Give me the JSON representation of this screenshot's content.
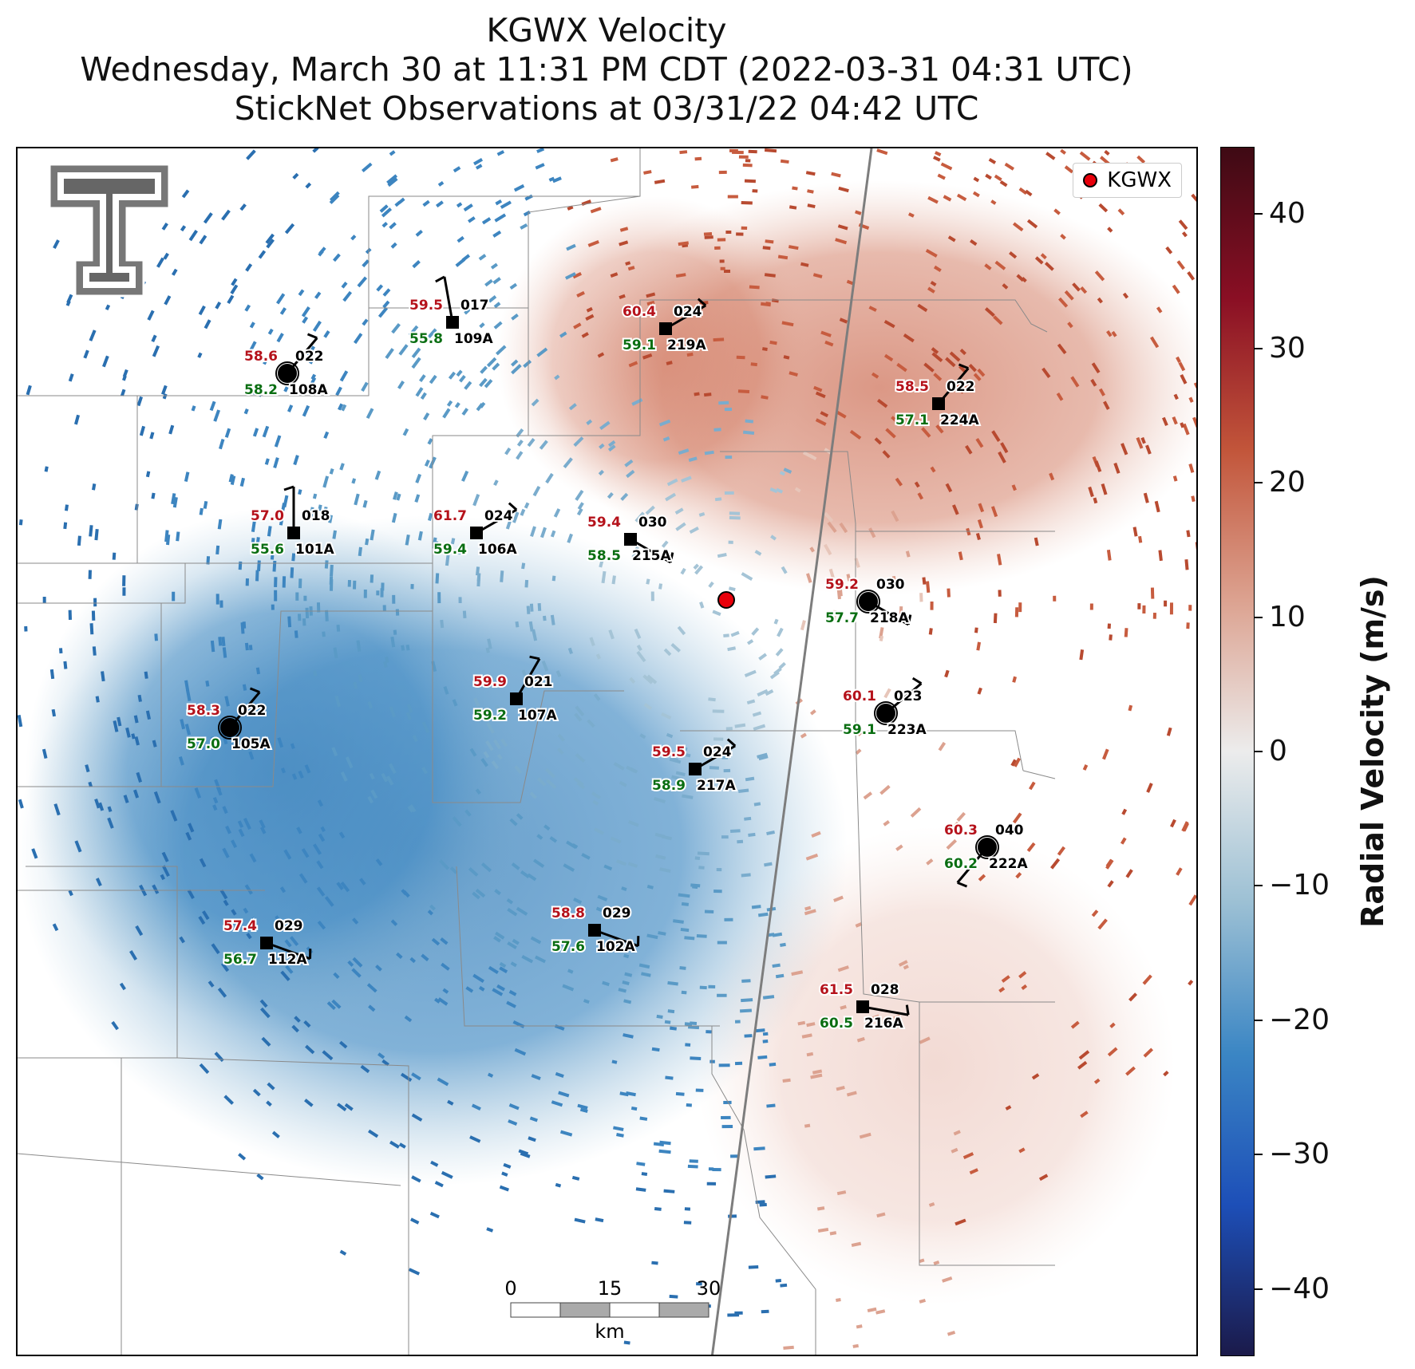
{
  "title": {
    "line1": "KGWX Velocity",
    "line2": "Wednesday, March 30 at 11:31 PM CDT (2022-03-31 04:31 UTC)",
    "line3": "StickNet Observations at 03/31/22 04:42 UTC"
  },
  "legend": {
    "label": "KGWX",
    "marker_color": "#e8000b"
  },
  "colorbar": {
    "title": "Radial Velocity (m/s)",
    "ticks": [
      "40",
      "30",
      "20",
      "10",
      "0",
      "−10",
      "−20",
      "−30",
      "−40"
    ],
    "range": [
      -45,
      45
    ],
    "colors": [
      "#1b1a4a",
      "#1d4fb8",
      "#3b86c4",
      "#9cc0d4",
      "#ececec",
      "#dca290",
      "#c2553a",
      "#8a0f24",
      "#3e0a14"
    ]
  },
  "scalebar": {
    "ticks": [
      "0",
      "15",
      "30"
    ],
    "unit": "km"
  },
  "logo": "texas-tech-double-t-logo",
  "stations": [
    {
      "id": "109A",
      "temp": "59.5",
      "dew": "55.8",
      "dir": "017"
    },
    {
      "id": "219A",
      "temp": "60.4",
      "dew": "59.1",
      "dir": "024"
    },
    {
      "id": "108A",
      "temp": "58.6",
      "dew": "58.2",
      "dir": "022"
    },
    {
      "id": "224A",
      "temp": "58.5",
      "dew": "57.1",
      "dir": "022"
    },
    {
      "id": "101A",
      "temp": "57.0",
      "dew": "55.6",
      "dir": "018"
    },
    {
      "id": "106A",
      "temp": "61.7",
      "dew": "59.4",
      "dir": "024"
    },
    {
      "id": "215A",
      "temp": "59.4",
      "dew": "58.5",
      "dir": "030"
    },
    {
      "id": "218A",
      "temp": "59.2",
      "dew": "57.7",
      "dir": "030"
    },
    {
      "id": "107A",
      "temp": "59.9",
      "dew": "59.2",
      "dir": "021"
    },
    {
      "id": "105A",
      "temp": "58.3",
      "dew": "57.0",
      "dir": "022"
    },
    {
      "id": "223A",
      "temp": "60.1",
      "dew": "59.1",
      "dir": "023"
    },
    {
      "id": "217A",
      "temp": "59.5",
      "dew": "58.9",
      "dir": "024"
    },
    {
      "id": "222A",
      "temp": "60.3",
      "dew": "60.2",
      "dir": "040"
    },
    {
      "id": "112A",
      "temp": "57.4",
      "dew": "56.7",
      "dir": "029"
    },
    {
      "id": "102A",
      "temp": "58.8",
      "dew": "57.6",
      "dir": "029"
    },
    {
      "id": "216A",
      "temp": "61.5",
      "dew": "60.5",
      "dir": "028"
    }
  ]
}
